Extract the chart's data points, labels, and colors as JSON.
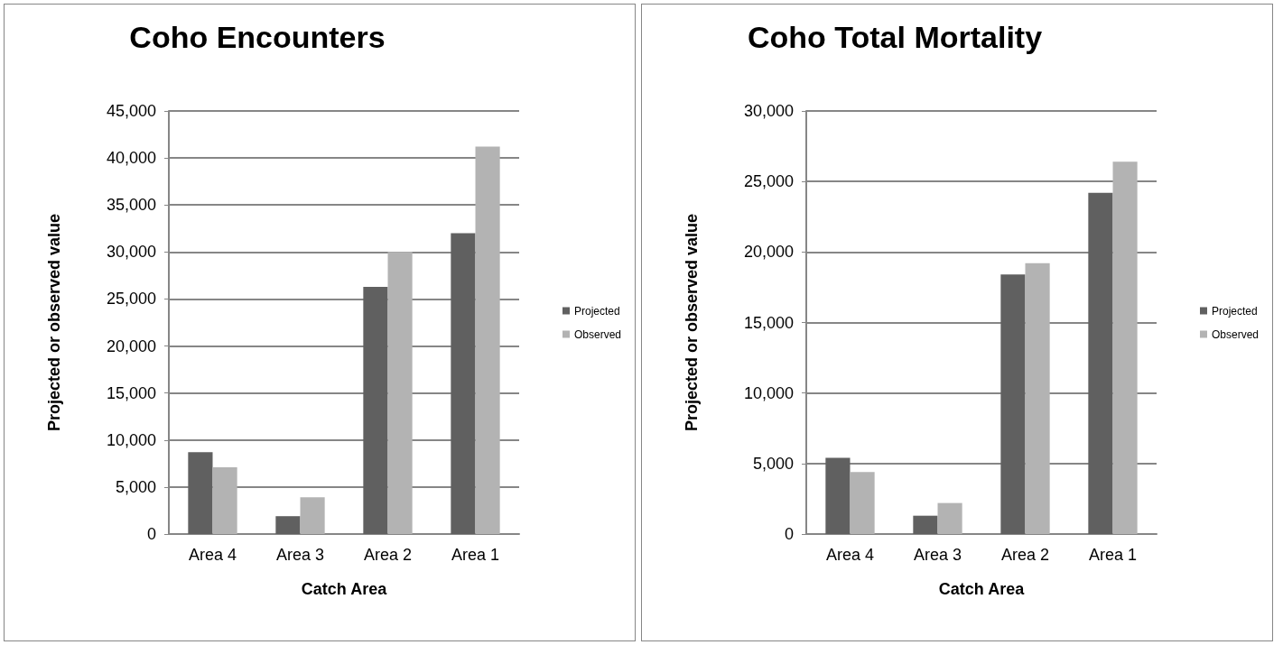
{
  "chart_data": [
    {
      "type": "bar",
      "title": "Coho Encounters",
      "xlabel": "Catch Area",
      "ylabel": "Projected or observed value",
      "categories": [
        "Area 4",
        "Area 3",
        "Area 2",
        "Area 1"
      ],
      "series": [
        {
          "name": "Projected",
          "color": "#606060",
          "values": [
            8700,
            1900,
            26300,
            32000
          ]
        },
        {
          "name": "Observed",
          "color": "#b3b3b3",
          "values": [
            7100,
            3900,
            30000,
            41200
          ]
        }
      ],
      "ylim": [
        0,
        45000
      ],
      "yticks": [
        {
          "value": 0,
          "label": "0"
        },
        {
          "value": 5000,
          "label": "5,000"
        },
        {
          "value": 10000,
          "label": "10,000"
        },
        {
          "value": 15000,
          "label": "15,000"
        },
        {
          "value": 20000,
          "label": "20,000"
        },
        {
          "value": 25000,
          "label": "25,000"
        },
        {
          "value": 30000,
          "label": "30,000"
        },
        {
          "value": 35000,
          "label": "35,000"
        },
        {
          "value": 40000,
          "label": "40,000"
        },
        {
          "value": 45000,
          "label": "45,000"
        }
      ],
      "grid": "y",
      "legend": "right"
    },
    {
      "type": "bar",
      "title": "Coho Total Mortality",
      "xlabel": "Catch Area",
      "ylabel": "Projected or observed value",
      "categories": [
        "Area 4",
        "Area 3",
        "Area 2",
        "Area 1"
      ],
      "series": [
        {
          "name": "Projected",
          "color": "#606060",
          "values": [
            5400,
            1300,
            18400,
            24200
          ]
        },
        {
          "name": "Observed",
          "color": "#b3b3b3",
          "values": [
            4400,
            2200,
            19200,
            26400
          ]
        }
      ],
      "ylim": [
        0,
        30000
      ],
      "yticks": [
        {
          "value": 0,
          "label": "0"
        },
        {
          "value": 5000,
          "label": "5,000"
        },
        {
          "value": 10000,
          "label": "10,000"
        },
        {
          "value": 15000,
          "label": "15,000"
        },
        {
          "value": 20000,
          "label": "20,000"
        },
        {
          "value": 25000,
          "label": "25,000"
        },
        {
          "value": 30000,
          "label": "30,000"
        }
      ],
      "grid": "y",
      "legend": "right"
    }
  ]
}
